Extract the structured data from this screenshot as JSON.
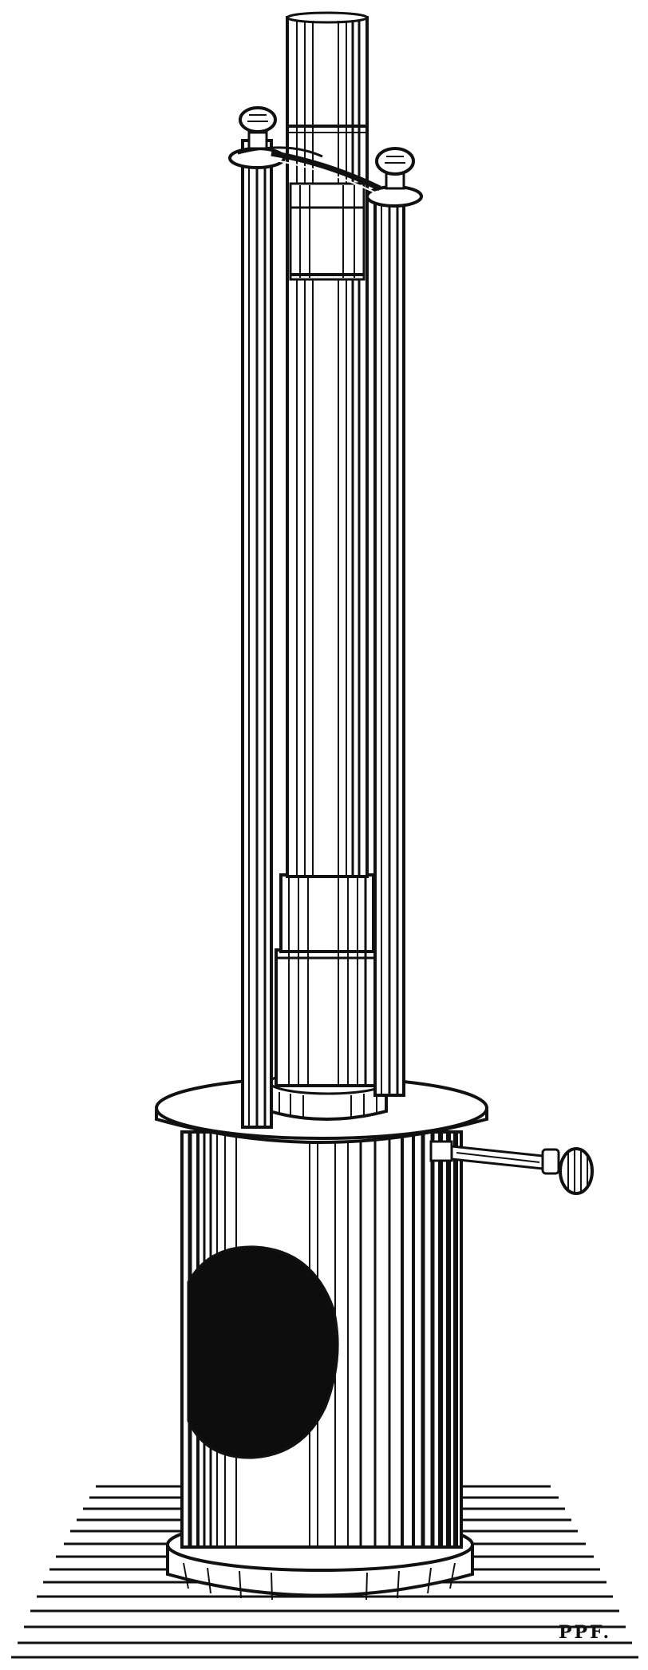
{
  "engraving": {
    "signature": "PPF.",
    "colors": {
      "ink": "#111111",
      "paper": "#ffffff"
    }
  }
}
